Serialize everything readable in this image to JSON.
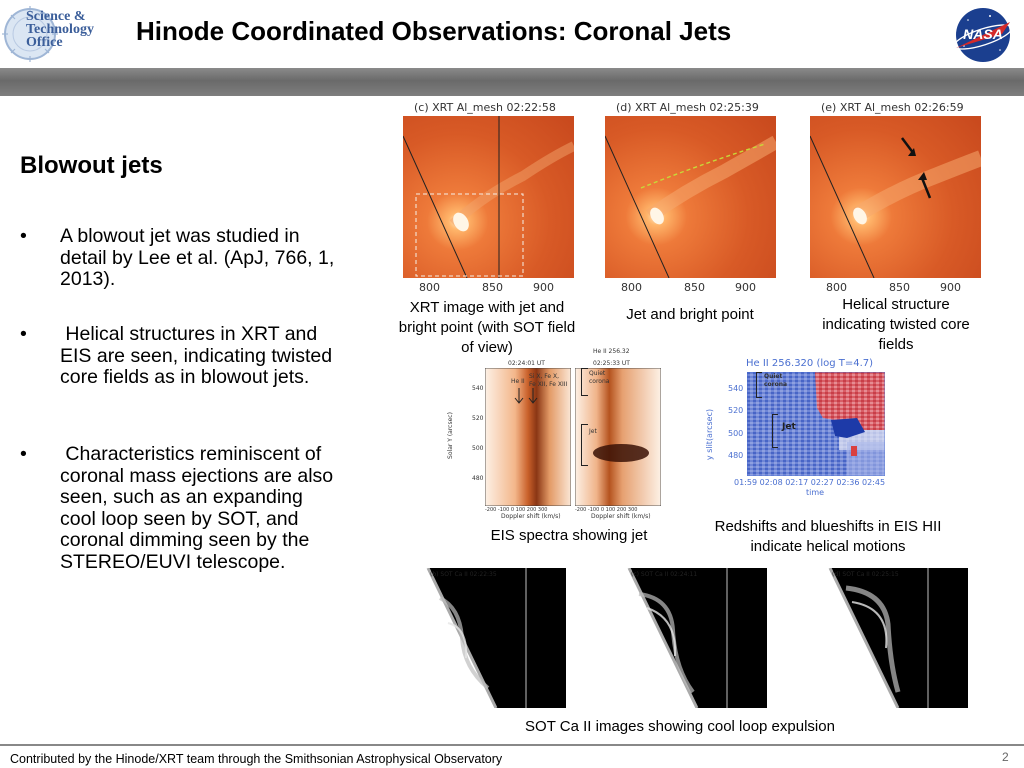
{
  "header": {
    "logo_line1": "Science &",
    "logo_line2": "Technology",
    "logo_line3": "Office",
    "title": "Hinode Coordinated Observations:  Coronal Jets",
    "nasa_logo": "NASA"
  },
  "left": {
    "heading": "Blowout jets",
    "bullets": [
      "A blowout jet was studied in detail by Lee et al. (ApJ, 766, 1, 2013).",
      " Helical structures in XRT and EIS are seen, indicating twisted core fields as in blowout jets.",
      " Characteristics reminiscent of coronal mass ejections are also seen, such as an expanding cool loop seen by SOT, and coronal dimming seen by the STEREO/EUVI telescope."
    ]
  },
  "xrt": {
    "panels": [
      {
        "label": "(c)  XRT  Al_mesh  02:22:58"
      },
      {
        "label": "(d)  XRT  Al_mesh  02:25:39"
      },
      {
        "label": "(e)  XRT  Al_mesh  02:26:59"
      }
    ],
    "ticks": [
      "800",
      "850",
      "900"
    ],
    "captions": [
      "XRT image with jet and bright point (with SOT field of view)",
      "Jet and bright point",
      "Helical structure indicating twisted core fields"
    ]
  },
  "eis": {
    "left_panel_time": "02:24:01 UT",
    "right_panel_title": "He II 256.32",
    "right_panel_time": "02:25:33 UT",
    "y_label": "Solar Y (arcsec)",
    "y_ticks": [
      "540",
      "520",
      "500",
      "480"
    ],
    "x_ticks": "-200 -100  0  100  200  300",
    "x_label": "Doppler shift (km/s)",
    "annot_heii": "He II",
    "annot_si": "Si X, Fe X,",
    "annot_fe": "Fe XII, Fe XIII",
    "annot_quiet": "Quiet",
    "annot_corona": "corona",
    "annot_jet": "Jet",
    "caption": "EIS spectra showing jet"
  },
  "heii": {
    "title": "He II 256.320 (log T=4.7)",
    "y_label": "y slit(arcsec)",
    "y_ticks": [
      "540",
      "520",
      "500",
      "480"
    ],
    "x_ticks": "01:59 02:08 02:17 02:27 02:36 02:45",
    "x_label": "time",
    "annot_quiet": "Quiet",
    "annot_corona": "corona",
    "annot_jet": "Jet",
    "caption": "Redshifts and blueshifts in EIS HII indicate helical motions"
  },
  "sot": {
    "panels": [
      {
        "label": "(b)  SOT Ca II 02:22:35"
      },
      {
        "label": "(c)  SOT Ca II 02:24:11"
      },
      {
        "label": "(d)  SOT Ca II 02:25:15"
      }
    ],
    "caption": "SOT Ca II images showing cool loop expulsion"
  },
  "footer": {
    "text": "Contributed by the Hinode/XRT team through the Smithsonian Astrophysical Observatory",
    "page": "2"
  },
  "colors": {
    "xrt_orange": "#e0642a",
    "header_bar": "#777777",
    "eis_red": "#d83a2a",
    "eis_blue": "#3a5fc8"
  }
}
